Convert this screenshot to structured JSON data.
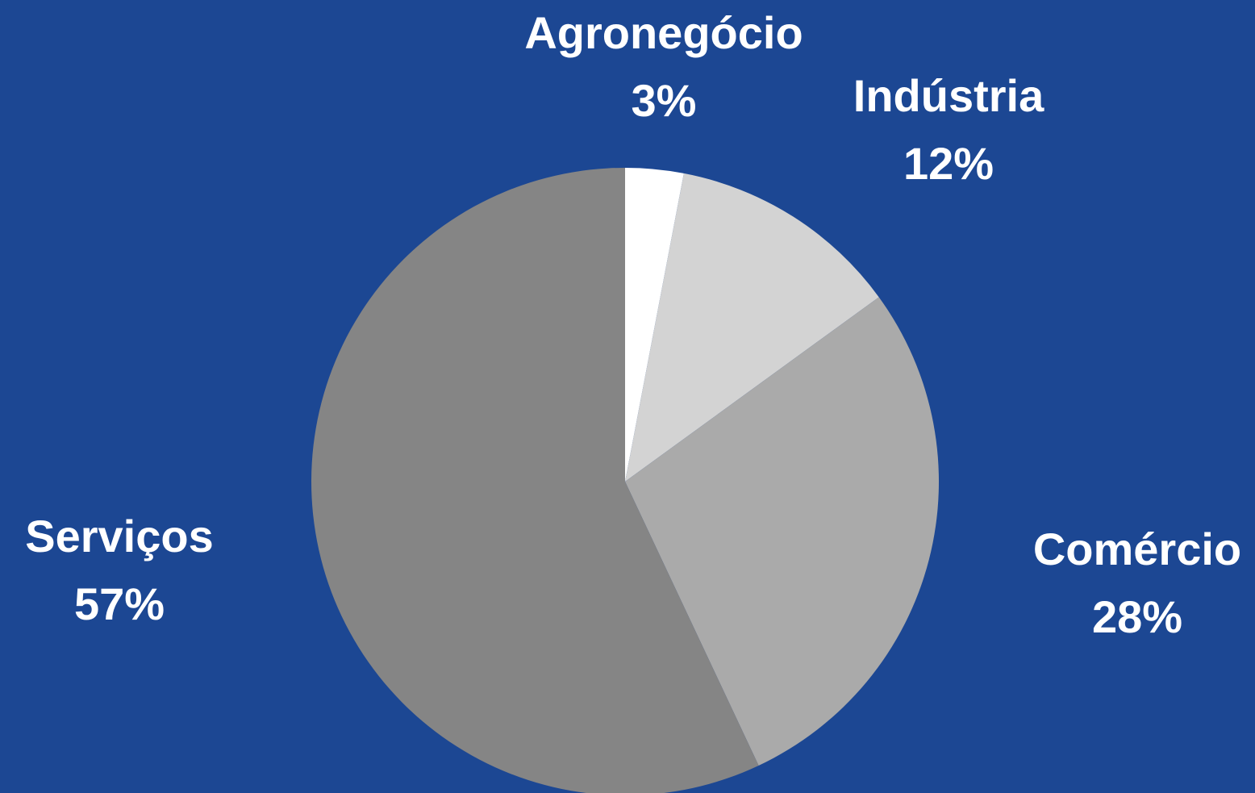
{
  "chart_data": {
    "type": "pie",
    "categories": [
      "Agronegócio",
      "Indústria",
      "Comércio",
      "Serviços"
    ],
    "values": [
      3,
      12,
      28,
      57
    ],
    "value_labels": [
      "3%",
      "12%",
      "28%",
      "57%"
    ],
    "colors": [
      "#ffffff",
      "#d3d3d3",
      "#aaaaaa",
      "#858585"
    ],
    "background": "#1c4793"
  }
}
